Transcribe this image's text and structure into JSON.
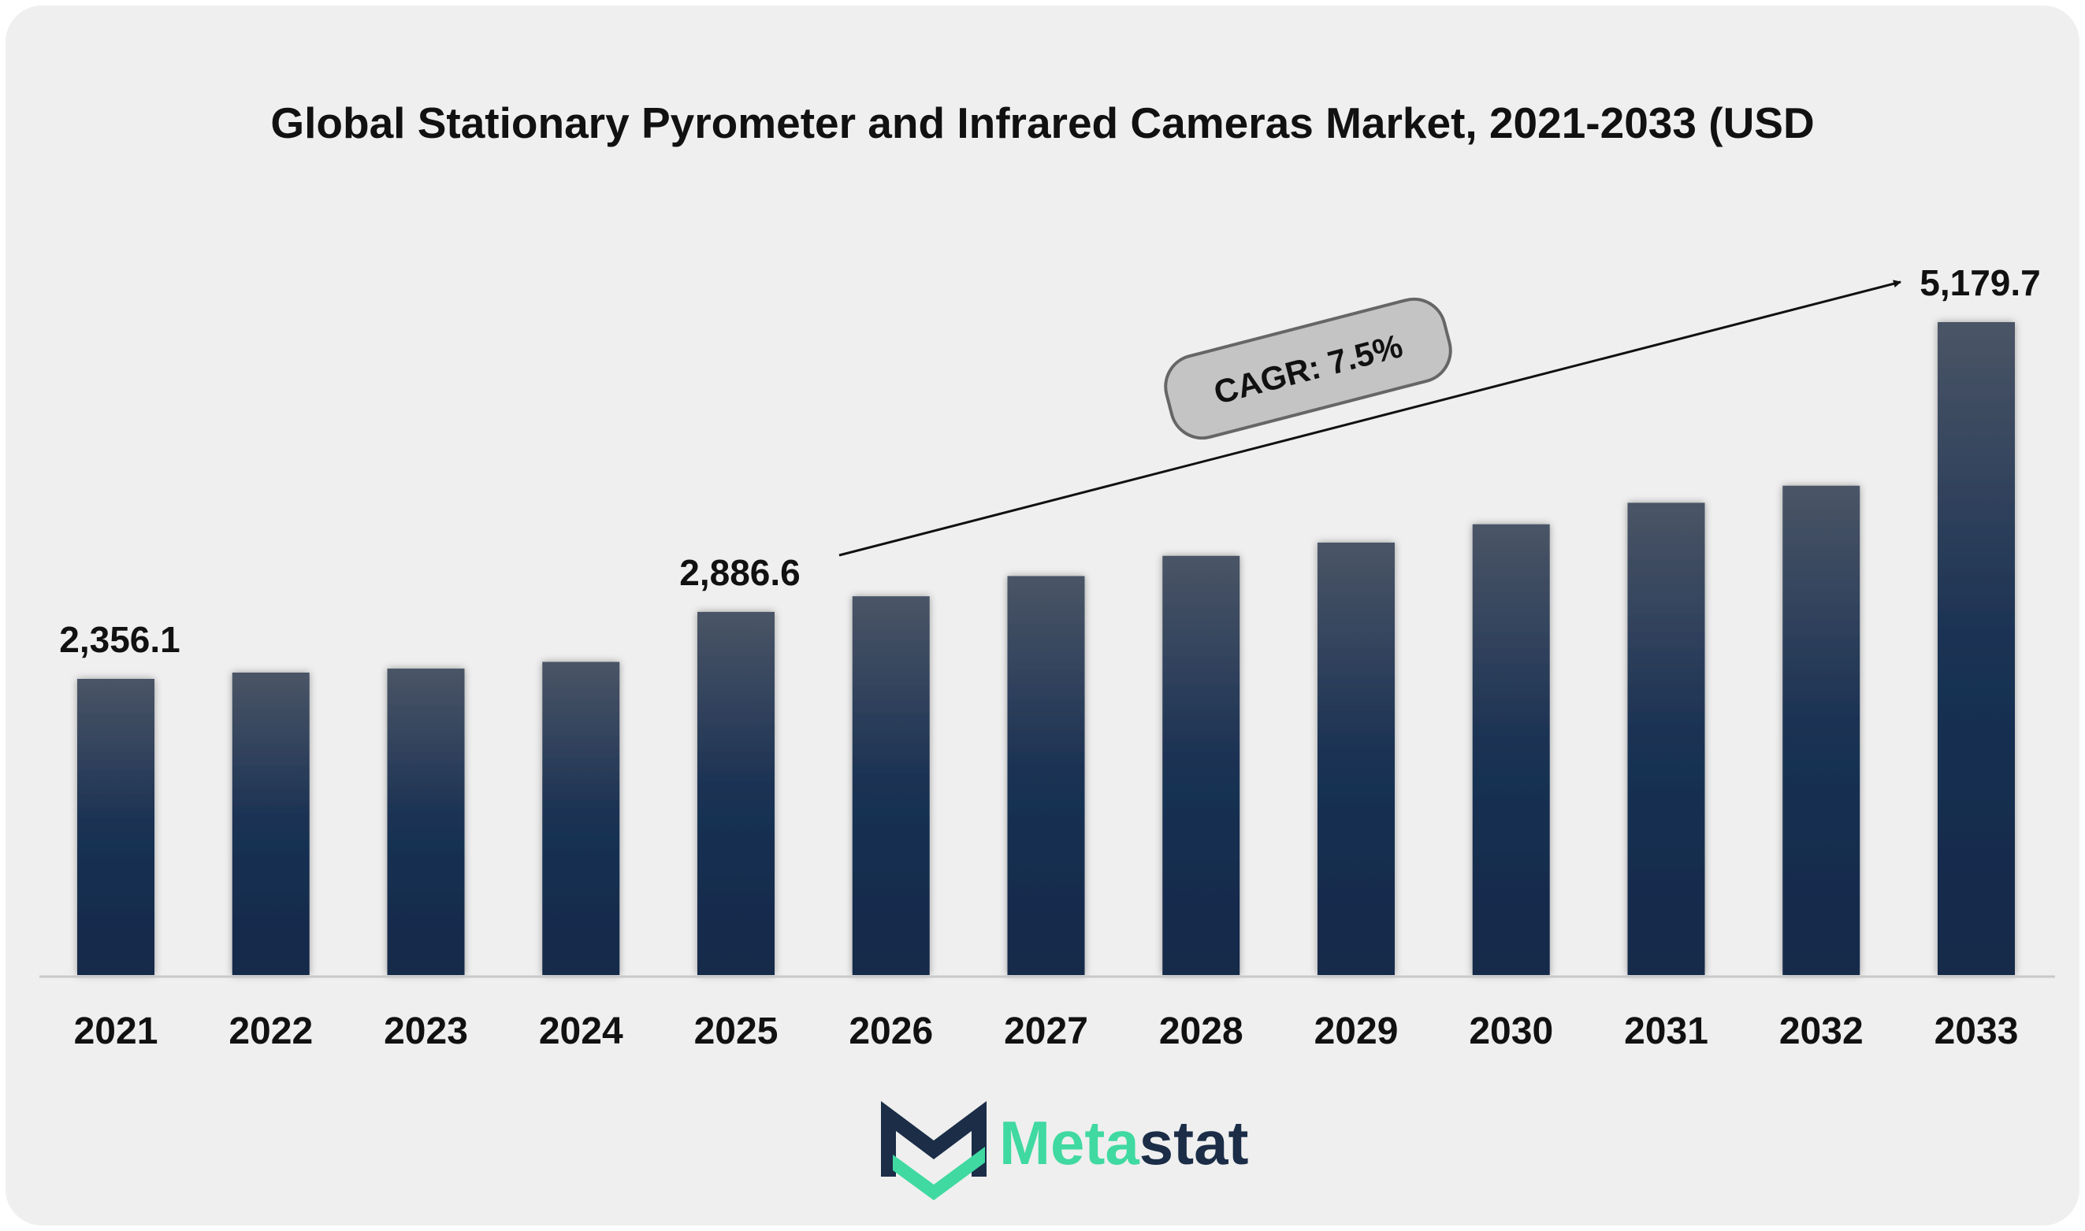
{
  "chart_data": {
    "type": "bar",
    "title": "Global Stationary Pyrometer and Infrared Cameras Market, 2021-2033 (USD",
    "categories": [
      "2021",
      "2022",
      "2023",
      "2024",
      "2025",
      "2026",
      "2027",
      "2028",
      "2029",
      "2030",
      "2031",
      "2032",
      "2033"
    ],
    "values": [
      2356.1,
      2406,
      2438,
      2491,
      2886.6,
      3010,
      3170,
      3330,
      3435,
      3580,
      3750,
      3885,
      5179.7
    ],
    "data_labels": [
      {
        "category": "2021",
        "text": "2,356.1"
      },
      {
        "category": "2025",
        "text": "2,886.6"
      },
      {
        "category": "2033",
        "text": "5,179.7"
      }
    ],
    "annotation": {
      "text": "CAGR: 7.5%",
      "from": "2025",
      "to": "2033"
    },
    "xlabel": "",
    "ylabel": "",
    "grid": false,
    "legend": "none"
  },
  "colors": {
    "background": "#efefef",
    "bar_top": "#4a5566",
    "bar_bottom": "#12294a",
    "cagr_fill": "#c4c4c4",
    "logo_dark": "#1b2d47",
    "logo_green": "#3fd9a1"
  },
  "logo": {
    "part1": "Meta",
    "part2": "stat",
    "icon": "metastat-m-icon"
  }
}
